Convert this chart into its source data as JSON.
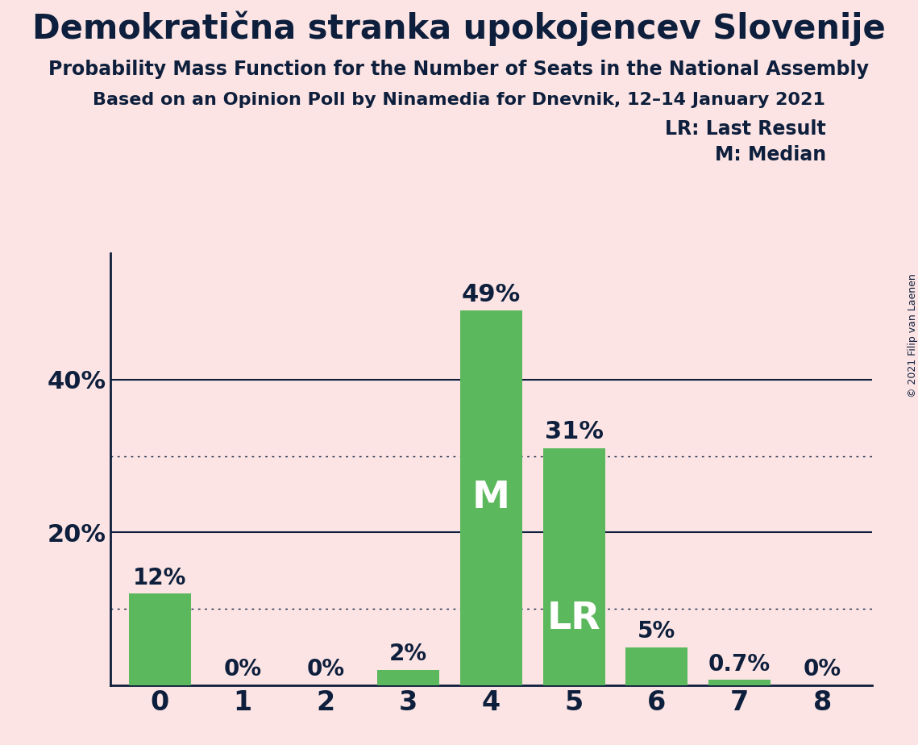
{
  "title": "Demokratična stranka upokojencev Slovenije",
  "subtitle1": "Probability Mass Function for the Number of Seats in the National Assembly",
  "subtitle2": "Based on an Opinion Poll by Ninamedia for Dnevnik, 12–14 January 2021",
  "copyright": "© 2021 Filip van Laenen",
  "categories": [
    0,
    1,
    2,
    3,
    4,
    5,
    6,
    7,
    8
  ],
  "values": [
    0.12,
    0.0,
    0.0,
    0.02,
    0.49,
    0.31,
    0.05,
    0.007,
    0.0
  ],
  "labels": [
    "12%",
    "0%",
    "0%",
    "2%",
    "49%",
    "31%",
    "5%",
    "0.7%",
    "0%"
  ],
  "bar_color": "#5cb85c",
  "background_color": "#fce4e4",
  "text_color": "#0d1f3c",
  "median_bar": 4,
  "lr_bar": 5,
  "median_label": "M",
  "lr_label": "LR",
  "legend_lr": "LR: Last Result",
  "legend_m": "M: Median",
  "yticks": [
    0.2,
    0.4
  ],
  "ytick_labels": [
    "20%",
    "40%"
  ],
  "ylim": [
    0,
    0.565
  ],
  "dotted_lines": [
    0.1,
    0.3
  ],
  "solid_lines": [
    0.2,
    0.4
  ]
}
